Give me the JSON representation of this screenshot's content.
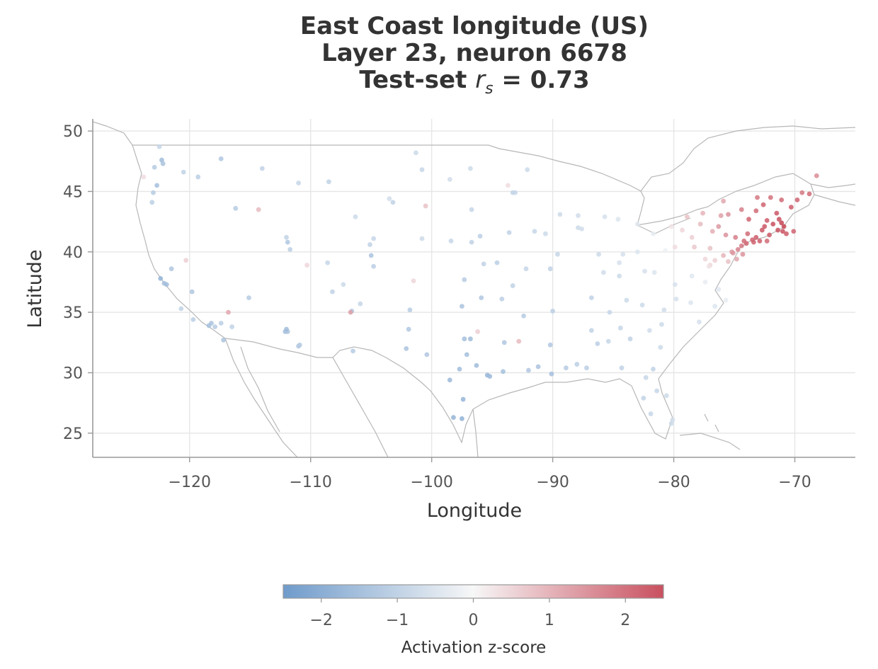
{
  "chart_data": {
    "type": "scatter",
    "title_lines": [
      "East Coast longitude (US)",
      "Layer 23, neuron 6678"
    ],
    "title_metric_prefix": "Test-set ",
    "title_metric_symbol": "r",
    "title_metric_subscript": "s",
    "title_metric_value": " = 0.73",
    "xlabel": "Longitude",
    "ylabel": "Latitude",
    "xlim": [
      -128,
      -65
    ],
    "ylim": [
      23,
      51
    ],
    "xticks": [
      -120,
      -110,
      -100,
      -90,
      -80,
      -70
    ],
    "xtick_labels": [
      "−120",
      "−110",
      "−100",
      "−90",
      "−80",
      "−70"
    ],
    "yticks": [
      25,
      30,
      35,
      40,
      45,
      50
    ],
    "ytick_labels": [
      "25",
      "30",
      "35",
      "40",
      "45",
      "50"
    ],
    "grid": true,
    "colorbar": {
      "label": "Activation z-score",
      "range": [
        -2.5,
        2.5
      ],
      "ticks": [
        -2,
        -1,
        0,
        1,
        2
      ],
      "tick_labels": [
        "−2",
        "−1",
        "0",
        "1",
        "2"
      ],
      "colors": {
        "low": "#6f9bcb",
        "mid": "#f7f7f7",
        "high": "#c9505f",
        "peak": "#b2182b"
      }
    },
    "points": [
      [
        -71.1,
        42.4,
        2.6
      ],
      [
        -71.4,
        41.8,
        2.5
      ],
      [
        -72.7,
        41.8,
        2.4
      ],
      [
        -73.2,
        41.2,
        2.3
      ],
      [
        -71.8,
        42.3,
        2.5
      ],
      [
        -72.5,
        42.1,
        2.4
      ],
      [
        -70.9,
        42.1,
        2.6
      ],
      [
        -71.0,
        41.7,
        2.5
      ],
      [
        -72.1,
        41.4,
        2.3
      ],
      [
        -73.5,
        41.0,
        2.2
      ],
      [
        -74.0,
        40.7,
        2.2
      ],
      [
        -74.2,
        40.9,
        2.1
      ],
      [
        -73.9,
        41.5,
        2.1
      ],
      [
        -74.4,
        40.5,
        1.9
      ],
      [
        -74.7,
        40.2,
        1.7
      ],
      [
        -75.1,
        39.9,
        1.4
      ],
      [
        -75.2,
        40.0,
        1.4
      ],
      [
        -74.9,
        41.2,
        1.8
      ],
      [
        -75.7,
        41.4,
        1.5
      ],
      [
        -76.3,
        42.1,
        1.4
      ],
      [
        -73.8,
        42.7,
        2.2
      ],
      [
        -73.2,
        43.4,
        2.1
      ],
      [
        -72.6,
        43.9,
        2.2
      ],
      [
        -71.5,
        43.2,
        2.4
      ],
      [
        -70.3,
        43.7,
        2.3
      ],
      [
        -69.8,
        44.3,
        2.2
      ],
      [
        -68.8,
        44.8,
        2.1
      ],
      [
        -72.0,
        44.5,
        2.0
      ],
      [
        -73.1,
        44.5,
        1.9
      ],
      [
        -74.4,
        43.5,
        1.8
      ],
      [
        -75.5,
        43.1,
        1.5
      ],
      [
        -76.1,
        43.0,
        1.3
      ],
      [
        -77.6,
        43.2,
        1.0
      ],
      [
        -78.9,
        42.9,
        0.8
      ],
      [
        -75.9,
        44.2,
        1.2
      ],
      [
        -76.6,
        39.3,
        0.6
      ],
      [
        -77.0,
        38.9,
        0.5
      ],
      [
        -77.4,
        39.4,
        0.5
      ],
      [
        -78.3,
        40.4,
        0.7
      ],
      [
        -79.9,
        40.4,
        0.4
      ],
      [
        -77.0,
        40.3,
        0.8
      ],
      [
        -75.9,
        39.7,
        1.0
      ],
      [
        -75.5,
        39.2,
        0.8
      ],
      [
        -74.8,
        39.4,
        1.2
      ],
      [
        -74.3,
        39.8,
        1.5
      ],
      [
        -72.9,
        40.9,
        2.3
      ],
      [
        -72.3,
        40.9,
        2.1
      ],
      [
        -73.4,
        40.8,
        2.2
      ],
      [
        -71.3,
        42.7,
        2.5
      ],
      [
        -72.3,
        42.6,
        2.3
      ],
      [
        -76.8,
        41.7,
        1.1
      ],
      [
        -77.8,
        42.3,
        0.9
      ],
      [
        -78.5,
        41.2,
        0.6
      ],
      [
        -79.3,
        41.8,
        0.5
      ],
      [
        -80.2,
        42.1,
        0.3
      ],
      [
        -70.1,
        41.7,
        2.2
      ],
      [
        -70.7,
        41.5,
        2.3
      ],
      [
        -69.4,
        44.9,
        1.9
      ],
      [
        -68.2,
        46.3,
        1.6
      ],
      [
        -71.1,
        44.3,
        2.1
      ],
      [
        -122.4,
        37.8,
        -1.8
      ],
      [
        -122.1,
        37.4,
        -1.5
      ],
      [
        -121.9,
        37.3,
        -1.6
      ],
      [
        -121.5,
        38.6,
        -1.3
      ],
      [
        -118.2,
        34.1,
        -1.4
      ],
      [
        -118.4,
        33.9,
        -1.5
      ],
      [
        -117.9,
        33.8,
        -1.2
      ],
      [
        -117.2,
        32.7,
        -1.4
      ],
      [
        -117.4,
        34.1,
        -1.1
      ],
      [
        -119.8,
        36.7,
        -1.3
      ],
      [
        -120.7,
        35.3,
        -1.0
      ],
      [
        -119.7,
        34.4,
        -1.1
      ],
      [
        -116.5,
        33.8,
        -1.0
      ],
      [
        -115.1,
        36.2,
        -1.2
      ],
      [
        -112.1,
        33.4,
        -1.5
      ],
      [
        -111.9,
        33.4,
        -1.4
      ],
      [
        -111.0,
        32.2,
        -1.3
      ],
      [
        -110.9,
        32.3,
        -1.2
      ],
      [
        -112.0,
        33.6,
        -1.6
      ],
      [
        -106.6,
        35.1,
        -1.3
      ],
      [
        -106.5,
        31.8,
        -1.2
      ],
      [
        -105.9,
        35.7,
        -0.9
      ],
      [
        -104.8,
        38.8,
        -1.1
      ],
      [
        -105.0,
        39.7,
        -1.4
      ],
      [
        -105.1,
        40.6,
        -1.0
      ],
      [
        -104.8,
        41.1,
        -0.9
      ],
      [
        -111.9,
        40.8,
        -1.3
      ],
      [
        -111.7,
        40.2,
        -1.1
      ],
      [
        -112.0,
        41.2,
        -1.0
      ],
      [
        -116.2,
        43.6,
        -1.2
      ],
      [
        -117.4,
        47.7,
        -1.3
      ],
      [
        -122.3,
        47.6,
        -1.6
      ],
      [
        -122.2,
        47.3,
        -1.4
      ],
      [
        -122.7,
        45.5,
        -1.5
      ],
      [
        -123.0,
        44.9,
        -1.2
      ],
      [
        -123.1,
        44.1,
        -1.1
      ],
      [
        -122.9,
        47.0,
        -1.2
      ],
      [
        -122.5,
        48.7,
        -0.9
      ],
      [
        -120.5,
        46.6,
        -1.0
      ],
      [
        -119.3,
        46.2,
        -1.1
      ],
      [
        -114.0,
        46.9,
        -1.0
      ],
      [
        -111.0,
        45.7,
        -0.9
      ],
      [
        -108.5,
        45.8,
        -1.0
      ],
      [
        -106.3,
        42.9,
        -0.8
      ],
      [
        -100.8,
        46.8,
        -0.9
      ],
      [
        -96.8,
        46.9,
        -0.8
      ],
      [
        -96.7,
        43.5,
        -0.9
      ],
      [
        -103.2,
        44.1,
        -1.0
      ],
      [
        -98.5,
        46.0,
        -0.7
      ],
      [
        -101.3,
        48.2,
        -0.8
      ],
      [
        -96.7,
        40.8,
        -1.0
      ],
      [
        -96.0,
        41.3,
        -1.1
      ],
      [
        -98.4,
        40.9,
        -0.9
      ],
      [
        -100.8,
        41.1,
        -0.8
      ],
      [
        -97.3,
        37.7,
        -1.2
      ],
      [
        -95.7,
        39.0,
        -1.0
      ],
      [
        -94.6,
        39.1,
        -1.1
      ],
      [
        -97.5,
        35.5,
        -1.4
      ],
      [
        -95.9,
        36.2,
        -1.3
      ],
      [
        -96.8,
        32.8,
        -1.6
      ],
      [
        -97.3,
        32.8,
        -1.5
      ],
      [
        -95.4,
        29.8,
        -1.8
      ],
      [
        -95.2,
        29.7,
        -1.7
      ],
      [
        -98.5,
        29.4,
        -1.7
      ],
      [
        -97.7,
        30.3,
        -1.6
      ],
      [
        -97.4,
        27.8,
        -1.8
      ],
      [
        -97.5,
        26.2,
        -1.9
      ],
      [
        -98.2,
        26.3,
        -1.8
      ],
      [
        -94.1,
        30.1,
        -1.5
      ],
      [
        -101.9,
        33.6,
        -1.3
      ],
      [
        -101.8,
        35.2,
        -1.2
      ],
      [
        -102.1,
        32.0,
        -1.4
      ],
      [
        -100.4,
        31.5,
        -1.3
      ],
      [
        -97.1,
        31.5,
        -1.5
      ],
      [
        -96.3,
        30.6,
        -1.6
      ],
      [
        -94.0,
        32.5,
        -1.3
      ],
      [
        -92.4,
        34.7,
        -1.2
      ],
      [
        -94.2,
        36.1,
        -1.1
      ],
      [
        -90.2,
        38.6,
        -1.0
      ],
      [
        -93.3,
        37.2,
        -1.0
      ],
      [
        -92.2,
        38.6,
        -0.9
      ],
      [
        -91.2,
        30.5,
        -1.4
      ],
      [
        -90.1,
        29.9,
        -1.5
      ],
      [
        -92.0,
        30.2,
        -1.3
      ],
      [
        -90.2,
        32.3,
        -1.3
      ],
      [
        -88.9,
        30.4,
        -1.2
      ],
      [
        -88.0,
        30.7,
        -1.1
      ],
      [
        -86.8,
        33.5,
        -1.0
      ],
      [
        -86.3,
        32.4,
        -1.1
      ],
      [
        -85.4,
        32.6,
        -0.9
      ],
      [
        -84.4,
        33.7,
        -0.9
      ],
      [
        -83.6,
        32.8,
        -1.0
      ],
      [
        -81.1,
        32.1,
        -0.8
      ],
      [
        -82.0,
        33.5,
        -0.7
      ],
      [
        -81.0,
        34.0,
        -0.8
      ],
      [
        -80.8,
        35.2,
        -0.7
      ],
      [
        -78.6,
        35.8,
        -0.5
      ],
      [
        -79.8,
        36.1,
        -0.6
      ],
      [
        -77.9,
        34.2,
        -0.6
      ],
      [
        -82.6,
        35.6,
        -0.8
      ],
      [
        -86.8,
        36.2,
        -1.0
      ],
      [
        -85.3,
        35.0,
        -0.9
      ],
      [
        -83.9,
        36.0,
        -0.8
      ],
      [
        -90.0,
        35.1,
        -1.1
      ],
      [
        -85.8,
        38.3,
        -0.7
      ],
      [
        -84.5,
        38.0,
        -0.8
      ],
      [
        -84.5,
        39.1,
        -0.6
      ],
      [
        -83.0,
        40.0,
        -0.5
      ],
      [
        -81.7,
        41.5,
        -0.3
      ],
      [
        -84.2,
        39.8,
        -0.6
      ],
      [
        -86.2,
        39.8,
        -0.8
      ],
      [
        -87.6,
        41.9,
        -0.7
      ],
      [
        -87.9,
        42.0,
        -0.8
      ],
      [
        -89.6,
        39.8,
        -0.9
      ],
      [
        -89.4,
        43.1,
        -0.8
      ],
      [
        -87.9,
        43.0,
        -0.7
      ],
      [
        -93.3,
        44.9,
        -1.0
      ],
      [
        -93.1,
        44.9,
        -0.9
      ],
      [
        -92.1,
        46.8,
        -0.8
      ],
      [
        -91.5,
        41.7,
        -0.9
      ],
      [
        -93.6,
        41.6,
        -1.0
      ],
      [
        -90.6,
        41.5,
        -0.8
      ],
      [
        -83.0,
        42.3,
        -0.4
      ],
      [
        -85.7,
        42.9,
        -0.6
      ],
      [
        -84.6,
        42.7,
        -0.5
      ],
      [
        -81.4,
        28.5,
        -0.9
      ],
      [
        -80.2,
        25.8,
        -0.8
      ],
      [
        -80.1,
        26.1,
        -0.7
      ],
      [
        -82.5,
        27.9,
        -1.0
      ],
      [
        -81.7,
        30.3,
        -1.0
      ],
      [
        -84.3,
        30.4,
        -1.0
      ],
      [
        -81.9,
        26.6,
        -0.9
      ],
      [
        -80.6,
        28.1,
        -0.8
      ],
      [
        -82.3,
        29.6,
        -0.9
      ],
      [
        -87.2,
        30.4,
        -1.1
      ],
      [
        -76.3,
        36.9,
        -0.4
      ],
      [
        -77.4,
        37.5,
        -0.3
      ],
      [
        -79.9,
        37.3,
        -0.6
      ],
      [
        -78.5,
        38.0,
        -0.4
      ],
      [
        -81.6,
        38.3,
        -0.5
      ],
      [
        -80.7,
        40.1,
        -0.2
      ],
      [
        -82.4,
        38.4,
        -0.6
      ],
      [
        -76.6,
        35.5,
        -0.5
      ],
      [
        -75.7,
        36.0,
        -0.3
      ],
      [
        -77.1,
        38.8,
        0.3
      ],
      [
        -108.6,
        39.1,
        -0.9
      ],
      [
        -107.3,
        37.3,
        -0.8
      ],
      [
        -108.2,
        36.7,
        -1.0
      ],
      [
        -103.5,
        44.4,
        -0.7
      ],
      [
        -106.7,
        35.0,
        1.3
      ],
      [
        -114.3,
        43.5,
        0.9
      ],
      [
        -120.3,
        39.3,
        0.6
      ],
      [
        -123.8,
        46.2,
        0.4
      ],
      [
        -110.3,
        38.9,
        0.5
      ],
      [
        -116.8,
        35.0,
        1.2
      ],
      [
        -96.2,
        33.4,
        0.6
      ],
      [
        -93.7,
        45.5,
        0.4
      ],
      [
        -101.5,
        37.6,
        0.5
      ],
      [
        -92.8,
        32.6,
        0.9
      ],
      [
        -100.5,
        43.8,
        0.8
      ]
    ]
  }
}
